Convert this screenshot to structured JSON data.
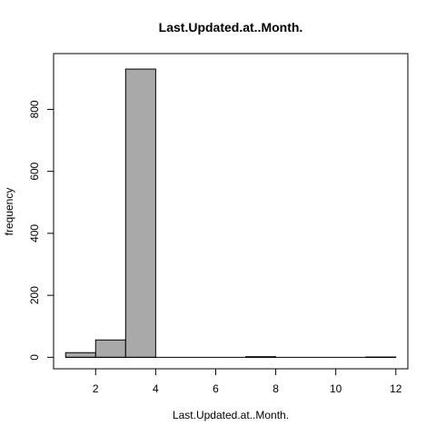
{
  "chart_data": {
    "type": "bar",
    "title": "Last.Updated.at..Month.",
    "xlabel": "Last.Updated.at..Month.",
    "ylabel": "frequency",
    "bins": [
      {
        "x0": 1,
        "x1": 2,
        "count": 15
      },
      {
        "x0": 2,
        "x1": 3,
        "count": 56
      },
      {
        "x0": 3,
        "x1": 4,
        "count": 930
      },
      {
        "x0": 4,
        "x1": 5,
        "count": 0
      },
      {
        "x0": 5,
        "x1": 6,
        "count": 0
      },
      {
        "x0": 6,
        "x1": 7,
        "count": 0
      },
      {
        "x0": 7,
        "x1": 8,
        "count": 2
      },
      {
        "x0": 8,
        "x1": 9,
        "count": 0
      },
      {
        "x0": 9,
        "x1": 10,
        "count": 0
      },
      {
        "x0": 10,
        "x1": 11,
        "count": 0
      },
      {
        "x0": 11,
        "x1": 12,
        "count": 1
      }
    ],
    "xlim": [
      0.6,
      12.4
    ],
    "ylim": [
      -37,
      980
    ],
    "xticks": [
      2,
      4,
      6,
      8,
      10,
      12
    ],
    "yticks": [
      0,
      200,
      400,
      600,
      800
    ],
    "grid": false,
    "legend": "none",
    "colors": {
      "bar": "#a9a9a9",
      "stroke": "#000000"
    }
  }
}
